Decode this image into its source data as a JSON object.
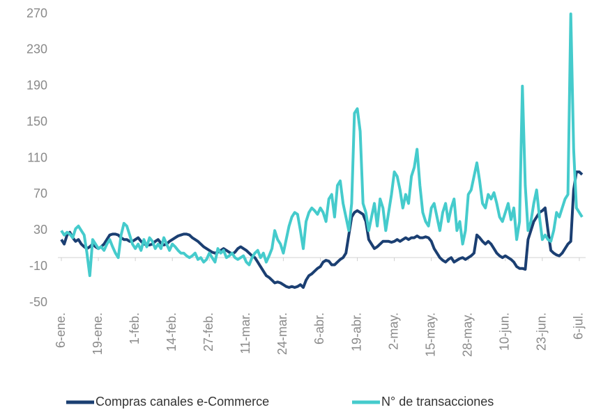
{
  "chart_data": {
    "type": "line",
    "categories": [
      "6-ene.",
      null,
      null,
      null,
      null,
      null,
      null,
      null,
      null,
      null,
      null,
      null,
      null,
      "19-ene.",
      null,
      null,
      null,
      null,
      null,
      null,
      null,
      null,
      null,
      null,
      null,
      null,
      "1-feb.",
      null,
      null,
      null,
      null,
      null,
      null,
      null,
      null,
      null,
      null,
      null,
      null,
      "14-feb.",
      null,
      null,
      null,
      null,
      null,
      null,
      null,
      null,
      null,
      null,
      null,
      null,
      "27-feb.",
      null,
      null,
      null,
      null,
      null,
      null,
      null,
      null,
      null,
      null,
      null,
      null,
      "11-mar.",
      null,
      null,
      null,
      null,
      null,
      null,
      null,
      null,
      null,
      null,
      null,
      null,
      "24-mar.",
      null,
      null,
      null,
      null,
      null,
      null,
      null,
      null,
      null,
      null,
      null,
      null,
      "6-abr.",
      null,
      null,
      null,
      null,
      null,
      null,
      null,
      null,
      null,
      null,
      null,
      null,
      "19-abr.",
      null,
      null,
      null,
      null,
      null,
      null,
      null,
      null,
      null,
      null,
      null,
      null,
      "2-may.",
      null,
      null,
      null,
      null,
      null,
      null,
      null,
      null,
      null,
      null,
      null,
      null,
      "15-may.",
      null,
      null,
      null,
      null,
      null,
      null,
      null,
      null,
      null,
      null,
      null,
      null,
      "28-may.",
      null,
      null,
      null,
      null,
      null,
      null,
      null,
      null,
      null,
      null,
      null,
      null,
      "10-jun.",
      null,
      null,
      null,
      null,
      null,
      null,
      null,
      null,
      null,
      null,
      null,
      null,
      "23-jun.",
      null,
      null,
      null,
      null,
      null,
      null,
      null,
      null,
      null,
      null,
      null,
      null,
      "6-jul.",
      null
    ],
    "series": [
      {
        "name": "Compras canales e-Commerce",
        "color": "#1b3f72",
        "values": [
          20,
          15,
          25,
          28,
          22,
          18,
          20,
          15,
          12,
          10,
          12,
          15,
          12,
          10,
          12,
          15,
          20,
          25,
          26,
          26,
          25,
          22,
          20,
          20,
          18,
          18,
          20,
          22,
          18,
          15,
          14,
          14,
          15,
          18,
          20,
          16,
          14,
          15,
          18,
          20,
          22,
          24,
          25,
          26,
          26,
          25,
          22,
          20,
          18,
          15,
          12,
          10,
          8,
          6,
          5,
          6,
          8,
          10,
          8,
          6,
          4,
          6,
          10,
          12,
          10,
          8,
          5,
          2,
          0,
          -5,
          -10,
          -15,
          -20,
          -22,
          -25,
          -28,
          -27,
          -28,
          -30,
          -32,
          -33,
          -32,
          -33,
          -32,
          -30,
          -33,
          -25,
          -20,
          -18,
          -15,
          -12,
          -10,
          -5,
          -3,
          -4,
          -8,
          -8,
          -5,
          -2,
          0,
          5,
          25,
          45,
          50,
          52,
          50,
          48,
          40,
          20,
          15,
          10,
          12,
          15,
          18,
          18,
          18,
          17,
          18,
          20,
          18,
          20,
          22,
          20,
          22,
          22,
          24,
          22,
          22,
          23,
          22,
          18,
          10,
          5,
          0,
          -3,
          -5,
          -2,
          0,
          -5,
          -3,
          -1,
          0,
          -2,
          0,
          2,
          5,
          25,
          22,
          18,
          15,
          18,
          15,
          10,
          5,
          2,
          0,
          2,
          0,
          -2,
          -5,
          -10,
          -12,
          -12,
          -13,
          20,
          30,
          40,
          45,
          50,
          52,
          55,
          30,
          8,
          5,
          3,
          2,
          5,
          10,
          15,
          18,
          75,
          95,
          95,
          92
        ]
      },
      {
        "name": "N° de transacciones",
        "color": "#45cbcc",
        "values": [
          30,
          25,
          28,
          26,
          22,
          32,
          35,
          30,
          25,
          5,
          -20,
          20,
          15,
          10,
          12,
          8,
          15,
          20,
          12,
          5,
          0,
          25,
          38,
          35,
          25,
          15,
          10,
          15,
          8,
          20,
          12,
          22,
          18,
          10,
          15,
          10,
          22,
          15,
          8,
          15,
          12,
          8,
          5,
          5,
          2,
          0,
          2,
          5,
          -2,
          0,
          -5,
          -2,
          5,
          0,
          -5,
          10,
          5,
          8,
          0,
          2,
          5,
          0,
          -2,
          0,
          2,
          -5,
          -8,
          0,
          5,
          8,
          0,
          5,
          -5,
          2,
          10,
          30,
          20,
          15,
          5,
          20,
          35,
          45,
          50,
          48,
          30,
          10,
          40,
          50,
          55,
          52,
          48,
          55,
          50,
          40,
          65,
          70,
          45,
          80,
          85,
          60,
          45,
          30,
          60,
          160,
          165,
          140,
          60,
          50,
          30,
          45,
          60,
          35,
          65,
          55,
          30,
          50,
          70,
          95,
          90,
          75,
          55,
          70,
          60,
          90,
          100,
          120,
          80,
          50,
          40,
          35,
          55,
          60,
          45,
          30,
          50,
          60,
          40,
          55,
          65,
          30,
          40,
          15,
          30,
          70,
          75,
          90,
          105,
          85,
          60,
          55,
          70,
          65,
          72,
          60,
          45,
          40,
          50,
          60,
          42,
          55,
          20,
          40,
          190,
          80,
          30,
          40,
          60,
          75,
          45,
          20,
          25,
          20,
          18,
          30,
          50,
          45,
          55,
          65,
          70,
          270,
          120,
          55,
          50,
          45
        ]
      }
    ],
    "ylim": [
      -50,
      270
    ],
    "yticks": [
      -50,
      -10,
      30,
      70,
      110,
      150,
      190,
      230,
      270
    ]
  }
}
